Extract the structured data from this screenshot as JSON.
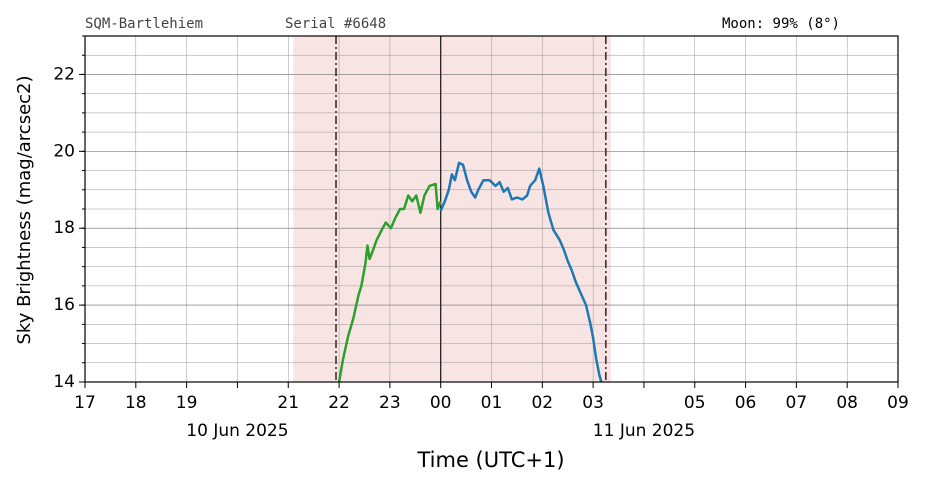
{
  "chart_data": {
    "type": "line",
    "header_left": "SQM-Bartlehiem",
    "header_serial": "Serial #6648",
    "header_right": "Moon: 99% (8°)",
    "ylabel": "Sky Brightness (mag/arcsec2)",
    "xlabel": "Time (UTC+1)",
    "xlim": [
      17,
      33
    ],
    "ylim": [
      14,
      23
    ],
    "xticks": [
      {
        "value": 17,
        "label": "17"
      },
      {
        "value": 18,
        "label": "18"
      },
      {
        "value": 19,
        "label": "19"
      },
      {
        "value": 21,
        "label": "21"
      },
      {
        "value": 22,
        "label": "22"
      },
      {
        "value": 23,
        "label": "23"
      },
      {
        "value": 24,
        "label": "00"
      },
      {
        "value": 25,
        "label": "01"
      },
      {
        "value": 26,
        "label": "02"
      },
      {
        "value": 27,
        "label": "03"
      },
      {
        "value": 29,
        "label": "05"
      },
      {
        "value": 30,
        "label": "06"
      },
      {
        "value": 31,
        "label": "07"
      },
      {
        "value": 32,
        "label": "08"
      },
      {
        "value": 33,
        "label": "09"
      }
    ],
    "date_labels": [
      {
        "value": 20,
        "label": "10 Jun 2025"
      },
      {
        "value": 28,
        "label": "11 Jun 2025"
      }
    ],
    "yticks": [
      14,
      16,
      18,
      20,
      22
    ],
    "grid": true,
    "shaded_span": [
      21.1,
      27.35
    ],
    "shade_color": "#f9e4e4",
    "dashed_lines": [
      21.94,
      27.25
    ],
    "solid_line": 24,
    "series": [
      {
        "color": "#2ca02c",
        "x": [
          22.0,
          22.08,
          22.18,
          22.28,
          22.38,
          22.44,
          22.52,
          22.56,
          22.6,
          22.66,
          22.74,
          22.84,
          22.92,
          23.02,
          23.1,
          23.2,
          23.28,
          23.36,
          23.44,
          23.52,
          23.6,
          23.68,
          23.78,
          23.9,
          23.94,
          24.0
        ],
        "values": [
          14.0,
          14.6,
          15.2,
          15.65,
          16.25,
          16.5,
          17.1,
          17.55,
          17.2,
          17.4,
          17.7,
          17.95,
          18.15,
          18.0,
          18.25,
          18.5,
          18.5,
          18.85,
          18.7,
          18.85,
          18.4,
          18.85,
          19.1,
          19.15,
          18.5,
          18.7
        ]
      },
      {
        "color": "#1f77b4",
        "x": [
          24.0,
          24.08,
          24.16,
          24.22,
          24.28,
          24.36,
          24.44,
          24.52,
          24.6,
          24.68,
          24.74,
          24.84,
          24.96,
          25.08,
          25.16,
          25.24,
          25.32,
          25.4,
          25.5,
          25.61,
          25.7,
          25.76,
          25.86,
          25.94,
          26.02,
          26.12,
          26.22,
          26.34,
          26.42,
          26.5,
          26.58,
          26.66,
          26.76,
          26.86,
          26.94,
          27.0,
          27.06,
          27.12,
          27.16
        ],
        "values": [
          18.45,
          18.7,
          19.0,
          19.4,
          19.25,
          19.7,
          19.65,
          19.25,
          18.95,
          18.8,
          19.0,
          19.25,
          19.25,
          19.1,
          19.2,
          18.95,
          19.05,
          18.75,
          18.8,
          18.75,
          18.85,
          19.1,
          19.25,
          19.55,
          19.1,
          18.4,
          17.95,
          17.7,
          17.45,
          17.15,
          16.9,
          16.6,
          16.3,
          16.0,
          15.55,
          15.15,
          14.6,
          14.2,
          14.0
        ]
      }
    ]
  }
}
